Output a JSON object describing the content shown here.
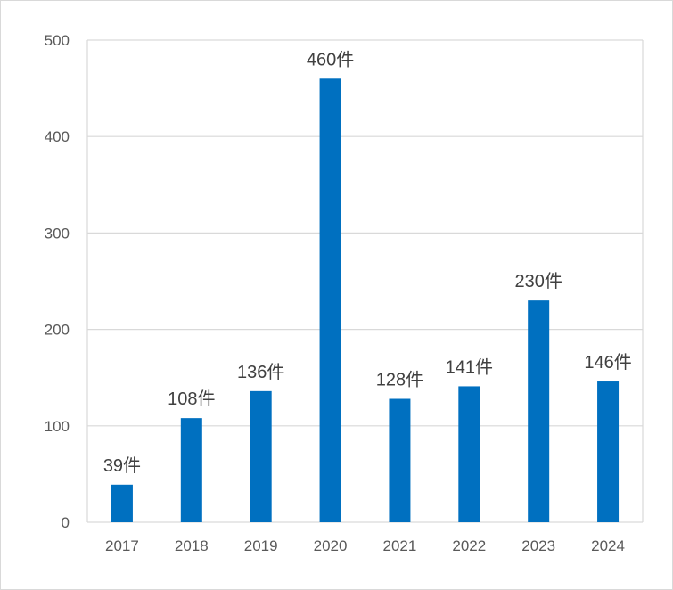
{
  "chart_data": {
    "type": "bar",
    "title": "",
    "xlabel": "",
    "ylabel": "",
    "categories": [
      "2017",
      "2018",
      "2019",
      "2020",
      "2021",
      "2022",
      "2023",
      "2024"
    ],
    "values": [
      39,
      108,
      136,
      460,
      128,
      141,
      230,
      146
    ],
    "data_labels": [
      "39件",
      "108件",
      "136件",
      "460件",
      "128件",
      "141件",
      "230件",
      "146件"
    ],
    "ylim": [
      0,
      500
    ],
    "yticks": [
      "0",
      "100",
      "200",
      "300",
      "400",
      "500"
    ],
    "grid": true,
    "bar_color": "#0070c0",
    "grid_color": "#d9d9d9"
  }
}
